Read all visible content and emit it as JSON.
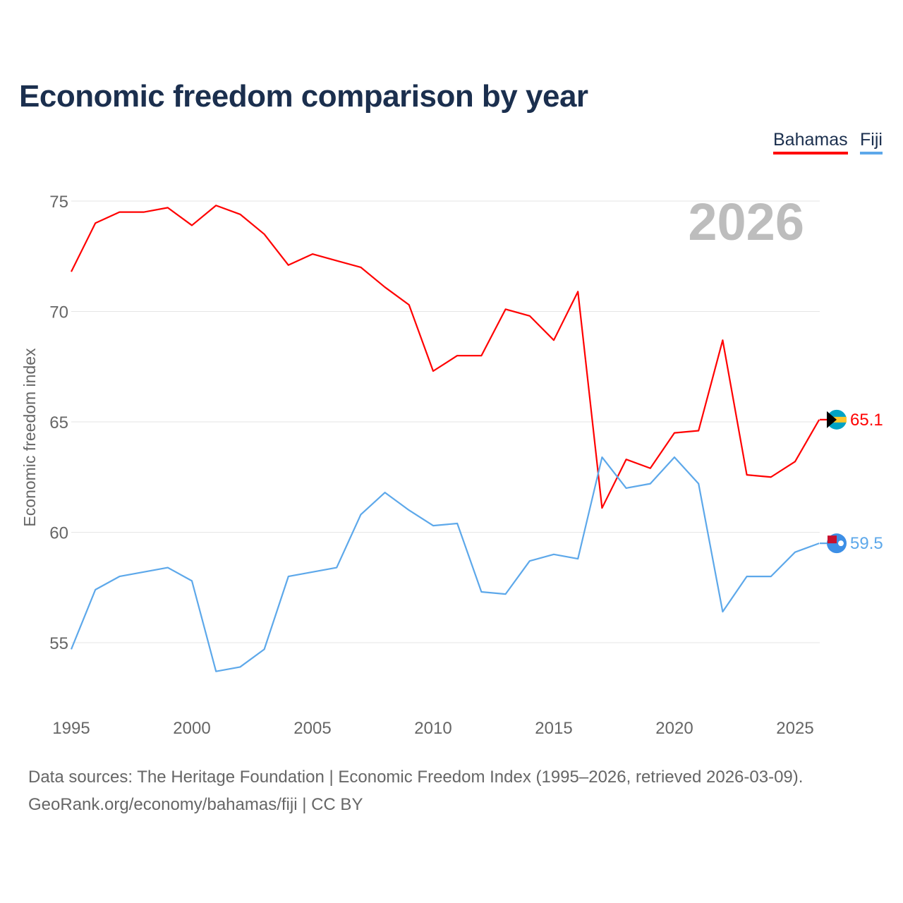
{
  "title": "Economic freedom comparison by year",
  "legend": [
    {
      "label": "Bahamas",
      "color": "#ff0000"
    },
    {
      "label": "Fiji",
      "color": "#5da8ea"
    }
  ],
  "year_watermark": "2026",
  "footer": {
    "line1": "Data sources: The Heritage Foundation | Economic Freedom Index (1995–2026, retrieved 2026-03-09).",
    "line2": "GeoRank.org/economy/bahamas/fiji | CC BY"
  },
  "chart_data": {
    "type": "line",
    "title": "Economic freedom comparison by year",
    "xlabel": "",
    "ylabel": "Economic freedom index",
    "xlim": [
      1995,
      2026
    ],
    "ylim": [
      52,
      76
    ],
    "xticks": [
      "1995",
      "2000",
      "2005",
      "2010",
      "2015",
      "2020",
      "2025"
    ],
    "yticks": [
      "55",
      "60",
      "65",
      "70",
      "75"
    ],
    "grid": true,
    "legend_position": "top-right",
    "x": [
      1995,
      1996,
      1997,
      1998,
      1999,
      2000,
      2001,
      2002,
      2003,
      2004,
      2005,
      2006,
      2007,
      2008,
      2009,
      2010,
      2011,
      2012,
      2013,
      2014,
      2015,
      2016,
      2017,
      2018,
      2019,
      2020,
      2021,
      2022,
      2023,
      2024,
      2025,
      2026
    ],
    "series": [
      {
        "name": "Bahamas",
        "color": "#ff0000",
        "end_label": "65.1",
        "values": [
          71.8,
          74.0,
          74.5,
          74.5,
          74.7,
          73.9,
          74.8,
          74.4,
          73.5,
          72.1,
          72.6,
          72.3,
          72.0,
          71.1,
          70.3,
          67.3,
          68.0,
          68.0,
          70.1,
          69.8,
          68.7,
          70.9,
          61.1,
          63.3,
          62.9,
          64.5,
          64.6,
          68.7,
          62.6,
          62.5,
          63.2,
          65.1
        ]
      },
      {
        "name": "Fiji",
        "color": "#5da8ea",
        "end_label": "59.5",
        "values": [
          54.7,
          57.4,
          58.0,
          58.2,
          58.4,
          57.8,
          53.7,
          53.9,
          54.7,
          58.0,
          58.2,
          58.4,
          60.8,
          61.8,
          61.0,
          60.3,
          60.4,
          57.3,
          57.2,
          58.7,
          59.0,
          58.8,
          63.4,
          62.0,
          62.2,
          63.4,
          62.2,
          56.4,
          58.0,
          58.0,
          59.1,
          59.5
        ]
      }
    ]
  }
}
